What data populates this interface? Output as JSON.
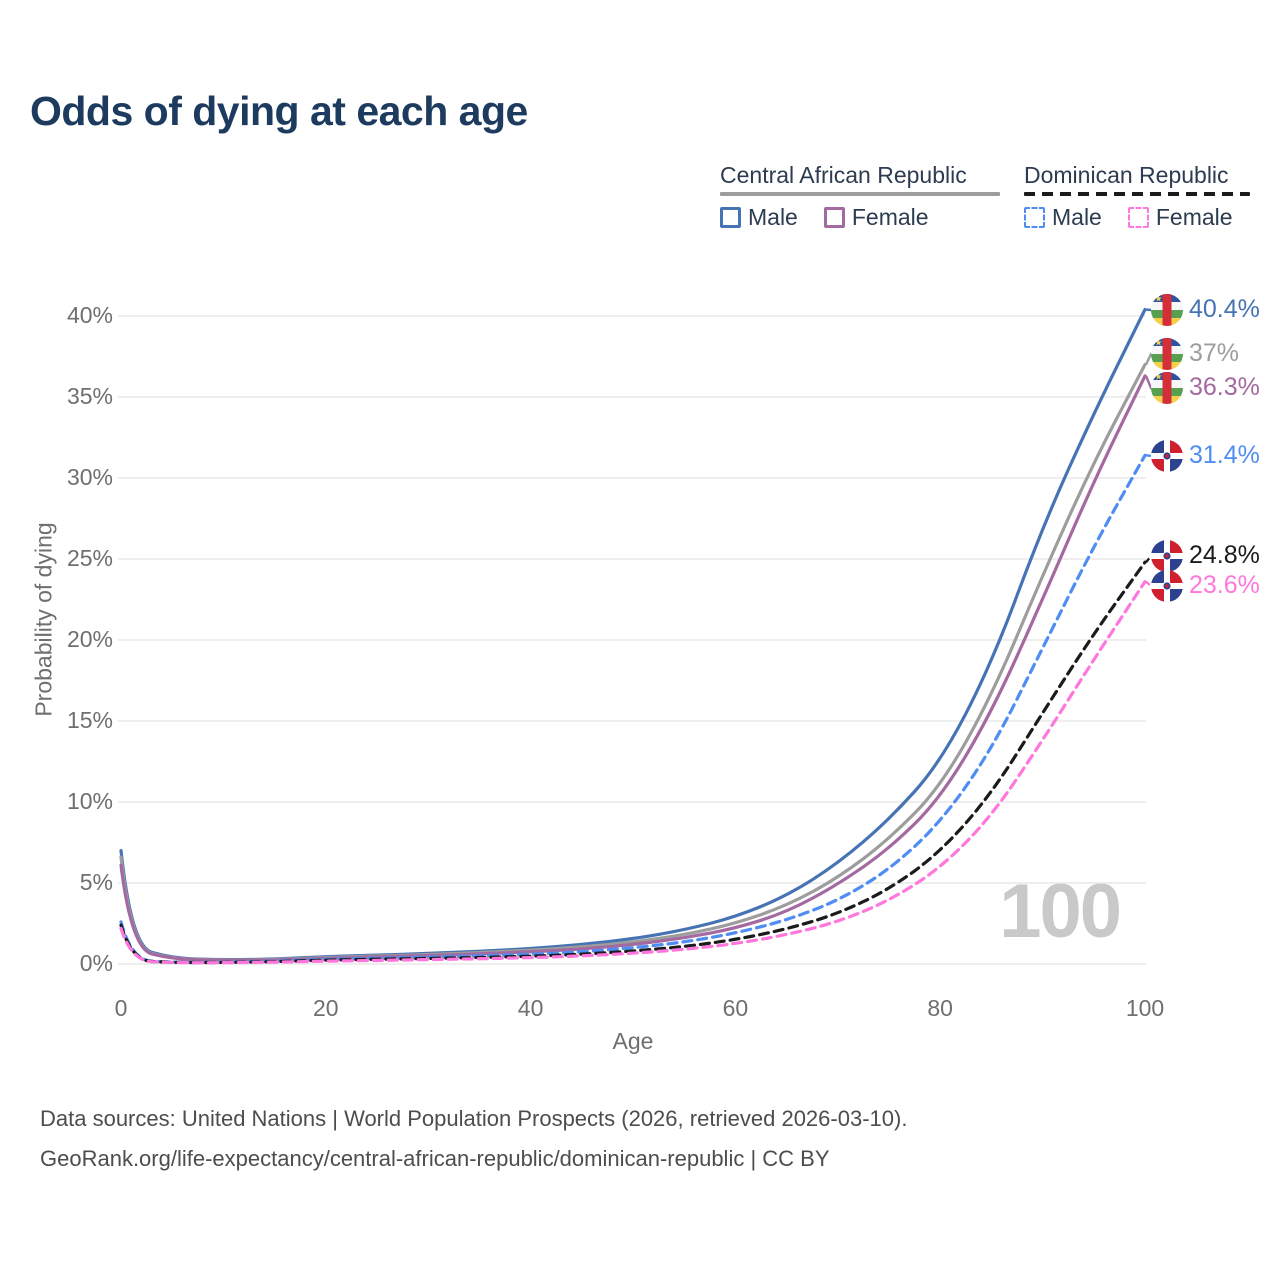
{
  "title": "Odds of dying at each age",
  "legend": {
    "groups": [
      {
        "label": "Central African Republic",
        "underline_color": "#9d9d9d",
        "underline_style": "solid",
        "items": [
          {
            "label": "Male",
            "color": "#4673b4",
            "dash": false
          },
          {
            "label": "Female",
            "color": "#a369a0",
            "dash": false
          }
        ]
      },
      {
        "label": "Dominican Republic",
        "underline_color": "#1b1b1b",
        "underline_style": "dashed",
        "items": [
          {
            "label": "Male",
            "color": "#4f8df2",
            "dash": true
          },
          {
            "label": "Female",
            "color": "#ff77dc",
            "dash": true
          }
        ]
      }
    ]
  },
  "axes": {
    "y": {
      "label": "Probability of dying",
      "ticks": [
        "0%",
        "5%",
        "10%",
        "15%",
        "20%",
        "25%",
        "30%",
        "35%",
        "40%"
      ]
    },
    "x": {
      "label": "Age",
      "ticks": [
        "0",
        "20",
        "40",
        "60",
        "80",
        "100"
      ]
    }
  },
  "watermark": "100",
  "footer": {
    "line1": "Data sources: United Nations | World Population Prospects (2026, retrieved 2026-03-10).",
    "line2": "GeoRank.org/life-expectancy/central-african-republic/dominican-republic | CC BY"
  },
  "colors": {
    "title_text": "#1d3b5e",
    "axis_text": "#6f6f6f",
    "grid": "#e8e8e8",
    "watermark": "#c9c9c9",
    "footer_text": "#4d4d4d",
    "legend_text": "#2d3c50"
  },
  "chart_data": {
    "type": "line",
    "title": "Odds of dying at each age",
    "xlabel": "Age",
    "ylabel": "Probability of dying",
    "x_ticks": [
      0,
      20,
      40,
      60,
      80,
      100
    ],
    "y_ticks_percent": [
      0,
      5,
      10,
      15,
      20,
      25,
      30,
      35,
      40
    ],
    "xlim": [
      0,
      100
    ],
    "ylim_percent": [
      0,
      42
    ],
    "grid": "horizontal",
    "legend_position": "top-right",
    "ages": [
      0,
      1,
      5,
      10,
      15,
      20,
      25,
      30,
      35,
      40,
      45,
      50,
      55,
      60,
      65,
      70,
      75,
      80,
      85,
      90,
      95,
      100
    ],
    "series": [
      {
        "id": "car-male",
        "name": "Central African Republic — Male",
        "flag": "car",
        "color": "#4673b4",
        "style": "solid",
        "end_label": "40.4%",
        "values_percent": [
          7.0,
          1.1,
          0.35,
          0.25,
          0.3,
          0.45,
          0.55,
          0.65,
          0.78,
          0.95,
          1.2,
          1.55,
          2.1,
          2.9,
          4.2,
          6.2,
          8.9,
          12.4,
          18.5,
          27.0,
          34.0,
          40.4
        ]
      },
      {
        "id": "car-all",
        "name": "Central African Republic — All",
        "flag": "car",
        "color": "#9d9d9d",
        "style": "solid",
        "end_label": "37%",
        "values_percent": [
          6.6,
          1.0,
          0.32,
          0.23,
          0.27,
          0.4,
          0.5,
          0.58,
          0.7,
          0.85,
          1.05,
          1.35,
          1.8,
          2.5,
          3.6,
          5.3,
          7.7,
          10.9,
          16.5,
          24.0,
          31.0,
          37.0
        ]
      },
      {
        "id": "car-female",
        "name": "Central African Republic — Female",
        "flag": "car",
        "color": "#a369a0",
        "style": "solid",
        "end_label": "36.3%",
        "values_percent": [
          6.1,
          0.95,
          0.3,
          0.21,
          0.24,
          0.35,
          0.44,
          0.52,
          0.62,
          0.75,
          0.92,
          1.2,
          1.6,
          2.2,
          3.2,
          4.9,
          7.1,
          10.2,
          15.5,
          22.5,
          29.8,
          36.3
        ]
      },
      {
        "id": "dr-male",
        "name": "Dominican Republic — Male",
        "flag": "dr",
        "color": "#4f8df2",
        "style": "dashed",
        "end_label": "31.4%",
        "values_percent": [
          2.6,
          0.25,
          0.1,
          0.1,
          0.17,
          0.3,
          0.36,
          0.42,
          0.5,
          0.6,
          0.75,
          1.0,
          1.35,
          1.9,
          2.7,
          3.9,
          5.8,
          8.7,
          13.2,
          19.5,
          25.8,
          31.4
        ]
      },
      {
        "id": "dr-all",
        "name": "Dominican Republic — All",
        "flag": "dr",
        "color": "#1b1b1b",
        "style": "dashed",
        "end_label": "24.8%",
        "values_percent": [
          2.4,
          0.22,
          0.09,
          0.09,
          0.14,
          0.24,
          0.29,
          0.34,
          0.4,
          0.48,
          0.6,
          0.8,
          1.07,
          1.5,
          2.15,
          3.1,
          4.6,
          6.9,
          10.5,
          15.5,
          20.4,
          24.8
        ]
      },
      {
        "id": "dr-female",
        "name": "Dominican Republic — Female",
        "flag": "dr",
        "color": "#ff77dc",
        "style": "dashed",
        "end_label": "23.6%",
        "values_percent": [
          2.2,
          0.2,
          0.08,
          0.08,
          0.11,
          0.18,
          0.22,
          0.27,
          0.32,
          0.39,
          0.5,
          0.66,
          0.9,
          1.25,
          1.8,
          2.6,
          3.9,
          5.9,
          9.1,
          13.8,
          18.8,
          23.6
        ]
      }
    ]
  }
}
